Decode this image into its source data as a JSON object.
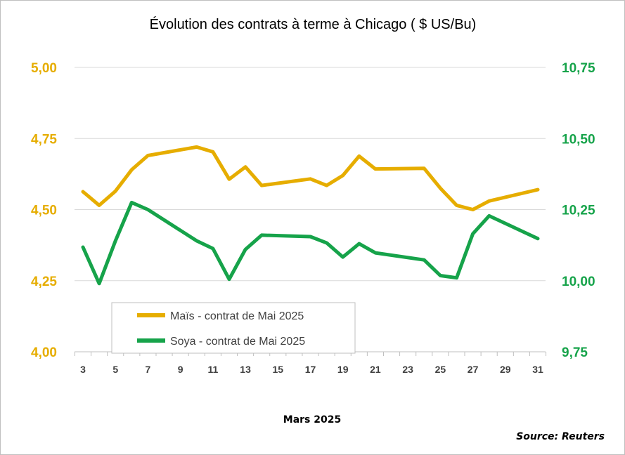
{
  "chart_data": {
    "type": "line",
    "title": "Évolution des contrats à terme à Chicago ( $ US/Bu)",
    "xlabel": "Mars 2025",
    "source": "Source: Reuters",
    "x_ticks": [
      "3",
      "5",
      "7",
      "9",
      "11",
      "13",
      "15",
      "17",
      "19",
      "21",
      "23",
      "25",
      "27",
      "29",
      "31"
    ],
    "x_range": [
      3,
      31
    ],
    "y_left": {
      "range": [
        4.0,
        5.0
      ],
      "ticks": [
        "5,00",
        "4,75",
        "4,50",
        "4,25",
        "4,00"
      ],
      "tick_values": [
        5.0,
        4.75,
        4.5,
        4.25,
        4.0
      ]
    },
    "y_right": {
      "range": [
        9.75,
        10.75
      ],
      "ticks": [
        "10,75",
        "10,50",
        "10,25",
        "10,00",
        "9,75"
      ],
      "tick_values": [
        10.75,
        10.5,
        10.25,
        10.0,
        9.75
      ]
    },
    "grid": true,
    "legend_placement": "bottom-left",
    "series": [
      {
        "name": "Maïs - contrat de Mai 2025",
        "axis": "left",
        "color": "#e6ad00",
        "x": [
          3,
          4,
          5,
          6,
          7,
          10,
          11,
          12,
          13,
          14,
          17,
          18,
          19,
          20,
          21,
          24,
          25,
          26,
          27,
          28,
          31
        ],
        "values": [
          4.563,
          4.515,
          4.565,
          4.64,
          4.69,
          4.72,
          4.703,
          4.607,
          4.65,
          4.585,
          4.608,
          4.585,
          4.62,
          4.688,
          4.643,
          4.645,
          4.575,
          4.515,
          4.5,
          4.53,
          4.57
        ]
      },
      {
        "name": "Soya - contrat de Mai 2025",
        "axis": "right",
        "color": "#16a34a",
        "x": [
          3,
          4,
          5,
          6,
          7,
          10,
          11,
          12,
          13,
          14,
          17,
          18,
          19,
          20,
          21,
          24,
          25,
          26,
          27,
          28,
          31
        ],
        "values": [
          10.118,
          9.99,
          10.14,
          10.275,
          10.25,
          10.14,
          10.113,
          10.005,
          10.11,
          10.16,
          10.155,
          10.133,
          10.083,
          10.13,
          10.098,
          10.073,
          10.018,
          10.01,
          10.165,
          10.228,
          10.148
        ]
      }
    ]
  }
}
